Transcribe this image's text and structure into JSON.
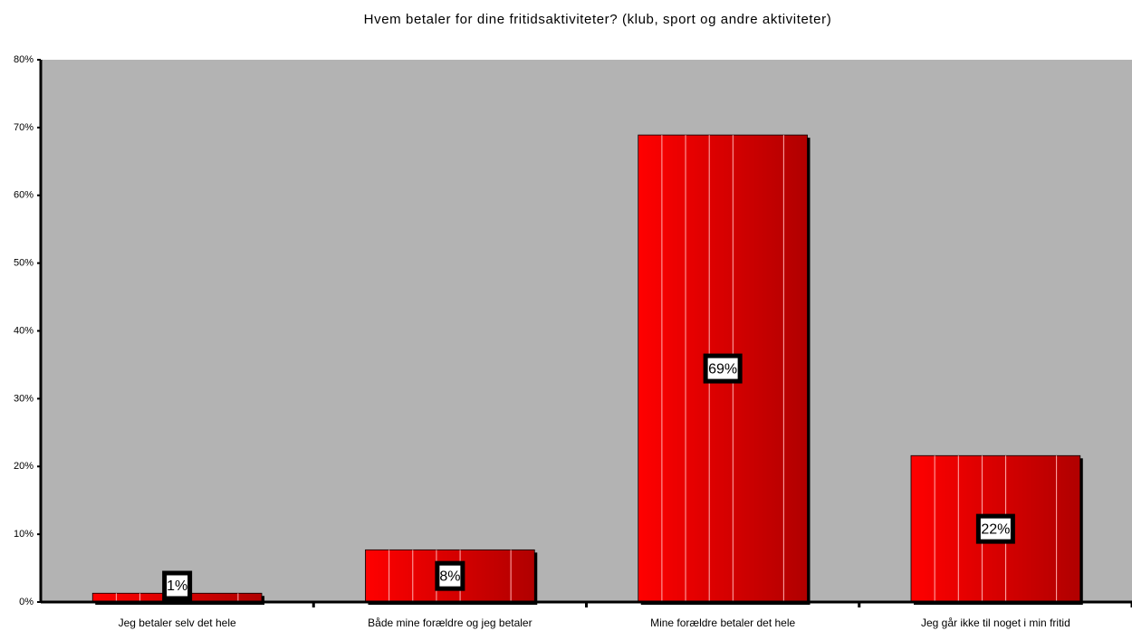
{
  "chart_data": {
    "type": "bar",
    "title": "Hvem betaler for dine fritidsaktiviteter? (klub, sport og andre aktiviteter)",
    "categories": [
      "Jeg betaler selv det hele",
      "Både mine forældre og jeg betaler",
      "Mine forældre betaler det hele",
      "Jeg går ikke til noget i min fritid"
    ],
    "values": [
      1.3,
      7.7,
      68.9,
      21.6
    ],
    "value_labels": [
      "1%",
      "8%",
      "69%",
      "22%"
    ],
    "color": "#e00000",
    "ylim": [
      0,
      80
    ],
    "yticks": [
      {
        "value": 0,
        "label": "0%"
      },
      {
        "value": 10,
        "label": "10%"
      },
      {
        "value": 20,
        "label": "20%"
      },
      {
        "value": 30,
        "label": "30%"
      },
      {
        "value": 40,
        "label": "40%"
      },
      {
        "value": 50,
        "label": "50%"
      },
      {
        "value": 60,
        "label": "60%"
      },
      {
        "value": 70,
        "label": "70%"
      },
      {
        "value": 80,
        "label": "80%"
      }
    ]
  }
}
